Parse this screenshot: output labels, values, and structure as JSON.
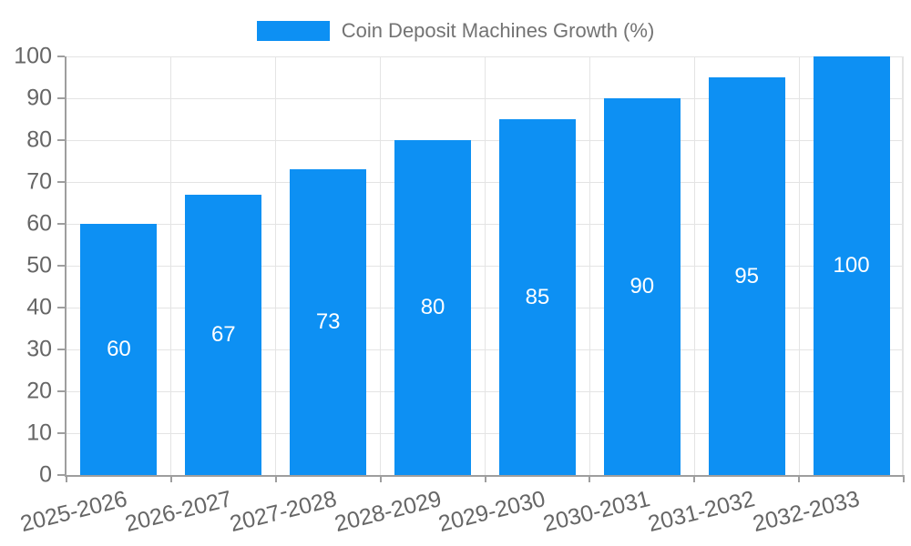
{
  "legend": {
    "label": "Coin Deposit Machines Growth (%)"
  },
  "chart_data": {
    "type": "bar",
    "title": "Coin Deposit Machines Growth (%)",
    "categories": [
      "2025-2026",
      "2026-2027",
      "2027-2028",
      "2028-2029",
      "2029-2030",
      "2030-2031",
      "2031-2032",
      "2032-2033"
    ],
    "values": [
      60,
      67,
      73,
      80,
      85,
      90,
      95,
      100
    ],
    "xlabel": "",
    "ylabel": "",
    "ylim": [
      0,
      100
    ],
    "yticks": [
      0,
      10,
      20,
      30,
      40,
      50,
      60,
      70,
      80,
      90,
      100
    ],
    "grid": true,
    "legend_position": "top",
    "bar_color": "#0d90f3",
    "value_label_color": "#ffffff",
    "axis_color": "#9e9e9e",
    "grid_color": "#e4e4e4",
    "tick_label_color": "#666666",
    "legend_text_color": "#737373"
  }
}
